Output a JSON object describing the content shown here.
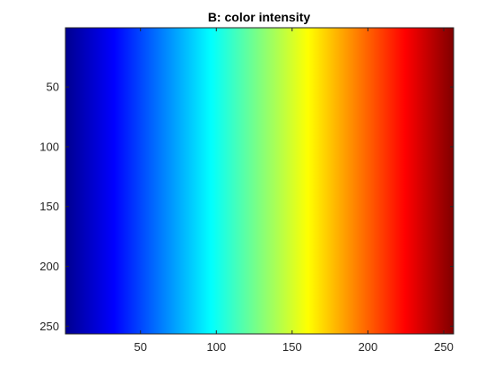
{
  "chart_data": {
    "type": "heatmap",
    "title": "B: color intensity",
    "xlabel": "",
    "ylabel": "",
    "xlim": [
      0.5,
      256.5
    ],
    "ylim": [
      0.5,
      256.5
    ],
    "y_direction": "reverse",
    "x_ticks": [
      50,
      100,
      150,
      200,
      250
    ],
    "y_ticks": [
      50,
      100,
      150,
      200,
      250
    ],
    "x_tick_labels": [
      "50",
      "100",
      "150",
      "200",
      "250"
    ],
    "y_tick_labels": [
      "50",
      "100",
      "150",
      "200",
      "250"
    ],
    "colormap": "jet",
    "pattern": "each column c (1..256) has value c; constant down every row",
    "grid": false,
    "colors": {
      "axis": "#262626",
      "background": "#ffffff"
    }
  }
}
